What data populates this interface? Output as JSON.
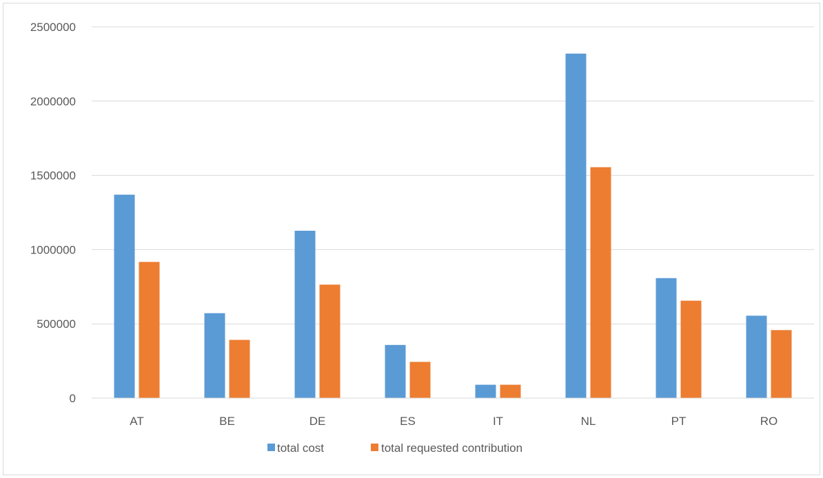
{
  "chart_data": {
    "type": "bar",
    "categories": [
      "AT",
      "BE",
      "DE",
      "ES",
      "IT",
      "NL",
      "PT",
      "RO"
    ],
    "series": [
      {
        "name": "total cost",
        "color": "#5b9bd5",
        "values": [
          1370000,
          572000,
          1127000,
          358000,
          90000,
          2320000,
          808000,
          555000
        ]
      },
      {
        "name": "total requested contribution",
        "color": "#ed7d31",
        "values": [
          917000,
          392000,
          764000,
          244000,
          90000,
          1555000,
          656000,
          458000
        ]
      }
    ],
    "y_ticks": [
      "0",
      "500000",
      "1000000",
      "1500000",
      "2000000",
      "2500000"
    ],
    "ylim": [
      0,
      2500000
    ],
    "grid": true,
    "legend_position": "bottom"
  }
}
